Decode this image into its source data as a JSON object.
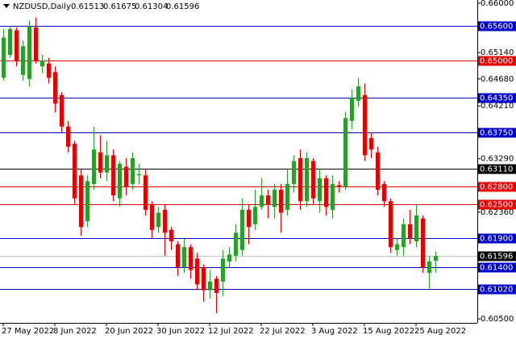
{
  "chart_data": {
    "type": "candlestick",
    "title": "NZDUSD,Daily",
    "categories": [
      "27 May 2022",
      null,
      null,
      null,
      null,
      null,
      null,
      null,
      "8 Jun 2022",
      null,
      null,
      null,
      null,
      null,
      null,
      null,
      "20 Jun 2022",
      null,
      null,
      null,
      null,
      null,
      null,
      null,
      "30 Jun 2022",
      null,
      null,
      null,
      null,
      null,
      null,
      null,
      "12 Jul 2022",
      null,
      null,
      null,
      null,
      null,
      null,
      null,
      "22 Jul 2022",
      null,
      null,
      null,
      null,
      null,
      null,
      null,
      "3 Aug 2022",
      null,
      null,
      null,
      null,
      null,
      null,
      null,
      "15 Aug 2022",
      null,
      null,
      null,
      null,
      null,
      null,
      null,
      "25 Aug 2022",
      null,
      null,
      null
    ],
    "series": {
      "open": [
        0.647,
        0.651,
        0.6553,
        0.6475,
        0.6468,
        0.6558,
        0.649,
        0.6495,
        0.648,
        0.644,
        0.6385,
        0.6355,
        0.63,
        0.622,
        0.6285,
        0.634,
        0.6305,
        0.6335,
        0.626,
        0.6315,
        0.6285,
        0.63,
        0.63,
        0.625,
        0.621,
        0.624,
        0.6205,
        0.618,
        0.614,
        0.6175,
        0.6155,
        0.614,
        0.61,
        0.612,
        0.6115,
        0.615,
        0.616,
        0.617,
        0.624,
        0.6215,
        0.6245,
        0.6265,
        0.6245,
        0.6275,
        0.624,
        0.6285,
        0.633,
        0.6255,
        0.6325,
        0.6255,
        0.6295,
        0.624,
        0.6283,
        0.628,
        0.6395,
        0.643,
        0.644,
        0.6365,
        0.634,
        0.6285,
        0.6255,
        0.617,
        0.6175,
        0.6215,
        0.6185,
        0.6225,
        0.613,
        0.61513
      ],
      "high": [
        0.6555,
        0.656,
        0.6558,
        0.6535,
        0.657,
        0.6575,
        0.651,
        0.6505,
        0.649,
        0.6445,
        0.6395,
        0.636,
        0.631,
        0.63,
        0.6385,
        0.637,
        0.636,
        0.6345,
        0.6325,
        0.633,
        0.634,
        0.632,
        0.631,
        0.6255,
        0.6245,
        0.625,
        0.621,
        0.6185,
        0.619,
        0.618,
        0.6165,
        0.6145,
        0.6135,
        0.6125,
        0.617,
        0.6175,
        0.6215,
        0.626,
        0.625,
        0.6275,
        0.6295,
        0.6275,
        0.6285,
        0.6285,
        0.631,
        0.6335,
        0.6345,
        0.634,
        0.633,
        0.631,
        0.63,
        0.63,
        0.629,
        0.641,
        0.645,
        0.647,
        0.646,
        0.6375,
        0.635,
        0.629,
        0.626,
        0.619,
        0.6225,
        0.624,
        0.625,
        0.623,
        0.616,
        0.61675
      ],
      "low": [
        0.6465,
        0.6505,
        0.649,
        0.6465,
        0.6455,
        0.6495,
        0.6478,
        0.646,
        0.641,
        0.6375,
        0.634,
        0.625,
        0.6195,
        0.621,
        0.6275,
        0.6295,
        0.629,
        0.6255,
        0.6245,
        0.6265,
        0.6275,
        0.6285,
        0.623,
        0.619,
        0.62,
        0.616,
        0.617,
        0.6125,
        0.613,
        0.612,
        0.61,
        0.608,
        0.6085,
        0.606,
        0.609,
        0.614,
        0.615,
        0.616,
        0.618,
        0.6205,
        0.624,
        0.6225,
        0.6225,
        0.62,
        0.623,
        0.627,
        0.624,
        0.6245,
        0.625,
        0.6235,
        0.623,
        0.6225,
        0.627,
        0.6275,
        0.638,
        0.642,
        0.6325,
        0.633,
        0.6265,
        0.6245,
        0.6165,
        0.616,
        0.616,
        0.618,
        0.6175,
        0.613,
        0.61,
        0.61304
      ],
      "close": [
        0.654,
        0.6555,
        0.65,
        0.6525,
        0.656,
        0.65,
        0.65,
        0.647,
        0.6425,
        0.6385,
        0.635,
        0.626,
        0.621,
        0.629,
        0.6345,
        0.6305,
        0.6335,
        0.6265,
        0.632,
        0.628,
        0.633,
        0.6302,
        0.624,
        0.6205,
        0.6235,
        0.62,
        0.6185,
        0.614,
        0.6175,
        0.6135,
        0.611,
        0.61,
        0.6115,
        0.6095,
        0.6155,
        0.6162,
        0.62,
        0.624,
        0.621,
        0.6245,
        0.6265,
        0.625,
        0.6275,
        0.6235,
        0.6285,
        0.6325,
        0.6255,
        0.633,
        0.626,
        0.6295,
        0.6245,
        0.6285,
        0.628,
        0.64,
        0.6435,
        0.6455,
        0.6335,
        0.6345,
        0.6275,
        0.6255,
        0.6175,
        0.618,
        0.6215,
        0.619,
        0.623,
        0.614,
        0.615,
        0.61596
      ]
    },
    "up_color": "#2a9d2a",
    "down_color": "#e60000",
    "ylim": [
      0.6043,
      0.66056
    ],
    "yticks": [
      {
        "value": 0.66,
        "label": "0.66000"
      },
      {
        "value": 0.6514,
        "label": "0.65140"
      },
      {
        "value": 0.6468,
        "label": "0.64680"
      },
      {
        "value": 0.6421,
        "label": "0.64210"
      },
      {
        "value": 0.6329,
        "label": "0.63290"
      },
      {
        "value": 0.6236,
        "label": "0.62360"
      },
      {
        "value": 0.6097,
        "label": "0.60970"
      },
      {
        "value": 0.605,
        "label": "0.60500"
      }
    ],
    "levels": [
      {
        "value": 0.656,
        "label": "0.65600",
        "color": "#0000c8"
      },
      {
        "value": 0.65,
        "label": "0.65000",
        "color": "#e60000"
      },
      {
        "value": 0.6435,
        "label": "0.64350",
        "color": "#0000c8"
      },
      {
        "value": 0.6375,
        "label": "0.63750",
        "color": "#0000c8"
      },
      {
        "value": 0.6311,
        "label": "0.63110",
        "color": "#000000"
      },
      {
        "value": 0.628,
        "label": "0.62800",
        "color": "#e60000"
      },
      {
        "value": 0.625,
        "label": "0.62500",
        "color": "#e60000"
      },
      {
        "value": 0.619,
        "label": "0.61900",
        "color": "#0000c8"
      },
      {
        "value": 0.614,
        "label": "0.61400",
        "color": "#0000c8"
      },
      {
        "value": 0.6102,
        "label": "0.61020",
        "color": "#0000c8"
      }
    ]
  }
}
